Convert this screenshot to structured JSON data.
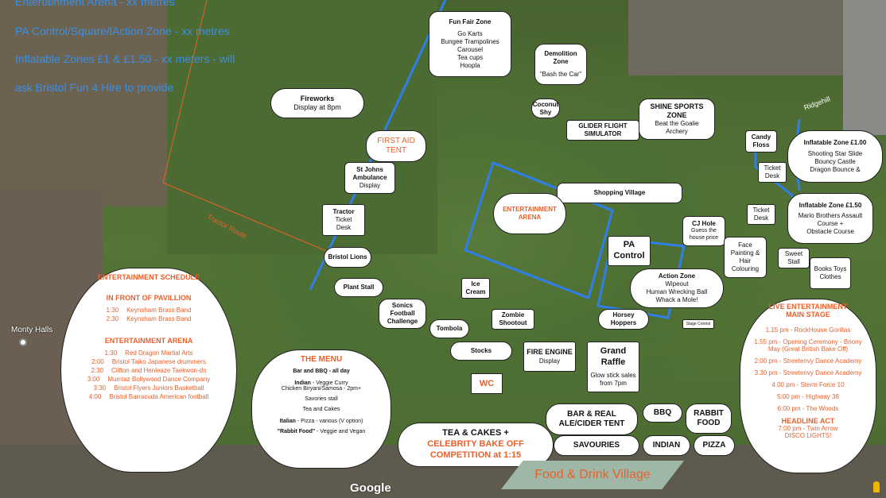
{
  "notes": [
    "Entertainment Arena - xx metres",
    "PA Control/Square/lAction Zone - xx metres",
    "Inflatable Zones £1 & £1.50 - xx meters - will",
    "ask Bristol Fun 4 Hire to provide"
  ],
  "map_labels": {
    "tractor_route": "Tractor Route",
    "ridgehill": "Ridgehill",
    "monty_halls": "Monty Halls",
    "google": "Google"
  },
  "zones": {
    "fun_fair": {
      "title": "Fun Fair Zone",
      "items": [
        "Go Karts",
        "Bungee Trampolines",
        "Carousel",
        "Tea cups",
        "Hoopla"
      ]
    },
    "demolition": {
      "title": "Demolition Zone",
      "sub": "\"Bash the Car\""
    },
    "fireworks": {
      "title": "Fireworks",
      "sub": "Display at 8pm"
    },
    "coconut": "Coconut Shy",
    "shine": {
      "title": "SHINE SPORTS ZONE",
      "items": [
        "Beat the Goalie",
        "Archery"
      ]
    },
    "glider": "GLIDER FLIGHT SIMULATOR",
    "candy": "Candy Floss",
    "inflatable1": {
      "title": "Inflatable Zone £1.00",
      "items": [
        "Shooting Star Slide",
        "Bouncy Castle",
        "Dragon Bounce &"
      ]
    },
    "first_aid": "FIRST AID TENT",
    "st_johns": {
      "title": "St Johns Ambulance",
      "sub": "Display"
    },
    "shopping": "Shopping Village",
    "ticket1": "Ticket Desk",
    "ticket2": "Ticket Desk",
    "inflatable2": {
      "title": "Inflatable Zone £1.50",
      "items": [
        "Mario Brothers Assault Course +",
        "Obstacle Course"
      ]
    },
    "tractor": {
      "title": "Tractor",
      "items": [
        "Ticket",
        "Desk"
      ]
    },
    "ent_arena": "ENTERTAINMENT ARENA",
    "cj_hole": {
      "title": "CJ Hole",
      "items": [
        "Guess the",
        "house price"
      ]
    },
    "face": "Face Painting & Hair Colouring",
    "sweet": "Sweet Stall",
    "books": "Books Toys Clothes",
    "bristol_lions": "Bristol Lions",
    "pa": "PA Control",
    "plant": "Plant Stall",
    "ice": "Ice Cream",
    "action": {
      "title": "Action Zone",
      "items": [
        "Wipeout",
        "Human Wrecking Ball",
        "Whack a Mole!"
      ]
    },
    "sonics": "Sonics Football Challenge",
    "tombola": "Tombola",
    "zombie": "Zombie Shootout",
    "horsey": "Horsey Hoppers",
    "stage_control": "Stage Control",
    "stocks": "Stocks",
    "fire_engine": {
      "title": "FIRE ENGINE",
      "sub": "Display"
    },
    "raffle": {
      "title": "Grand Raffle",
      "items": [
        "Glow stick sales",
        "from 7pm"
      ]
    },
    "wc": "WC",
    "bar": "BAR & REAL ALE/CIDER TENT",
    "bbq": "BBQ",
    "rabbit": "RABBIT FOOD",
    "savouries": "SAVOURIES",
    "indian": "INDIAN",
    "pizza": "PIZZA",
    "tea": {
      "line1": "TEA & CAKES +",
      "line2": "CELEBRITY BAKE OFF",
      "line3": "COMPETITION at 1:15"
    },
    "food_village": "Food & Drink Village"
  },
  "schedule": {
    "title": "ENTERTAINMENT SCHEDULE",
    "pavilion_title": "IN FRONT OF PAVILLION",
    "pavilion": [
      {
        "time": "1:30",
        "act": "Keynsham Brass Band"
      },
      {
        "time": "2:30",
        "act": "Keynsham Brass Band"
      }
    ],
    "arena_title": "ENTERTAINMENT ARENA",
    "arena": [
      {
        "time": "1:30",
        "act": "Red Dragon Martial Arts"
      },
      {
        "time": "2:00",
        "act": "Bristol Taiko Japanese drummers"
      },
      {
        "time": "2:30",
        "act": "Clifton and Henleaze Taekwon-do"
      },
      {
        "time": "3:00",
        "act": "Mumtaz Bollywood Dance Company"
      },
      {
        "time": "3:30",
        "act": "Bristol Flyers Juniors Basketball"
      },
      {
        "time": "4:00",
        "act": "Bristol Barracuda American football"
      }
    ]
  },
  "menu": {
    "title": "THE MENU",
    "bar": "Bar and BBQ - all day",
    "indian_k": "Indian",
    "indian": " - Veggie Curry",
    "indian2": "Chicken Biryani/Samosa - 2pm+",
    "savories": "Savories stall",
    "tea": "Tea and Cakes",
    "italian_k": "Italian",
    "italian": " - Pizza - various (V option)",
    "rabbit_k": "\"Rabbit Food\"",
    "rabbit": " - Veggie and Vegan"
  },
  "live": {
    "title": "LIVE ENTERTAINMENT",
    "subtitle": "MAIN STAGE",
    "items": [
      "1.15 pm - RockHouse Gorillas",
      "1.55 pm - Opening Ceremony - Briony May (Great British Bake Off)",
      "2:00 pm - Streetenvy Dance Academy",
      "3.30 pm - Streetenvy Dance Academy",
      "4.00 pm - Sterm Force 10",
      "5:00 pm - Highway 38",
      "6:00 pm - The Woods"
    ],
    "headline_title": "HEADLINE ACT",
    "headline1": "7:00 pm - Twin Arrow",
    "headline2": "DISCO LIGHTS!"
  },
  "colors": {
    "accent": "#e8612c",
    "blue": "#2f7fe8",
    "grass": "#557537"
  }
}
